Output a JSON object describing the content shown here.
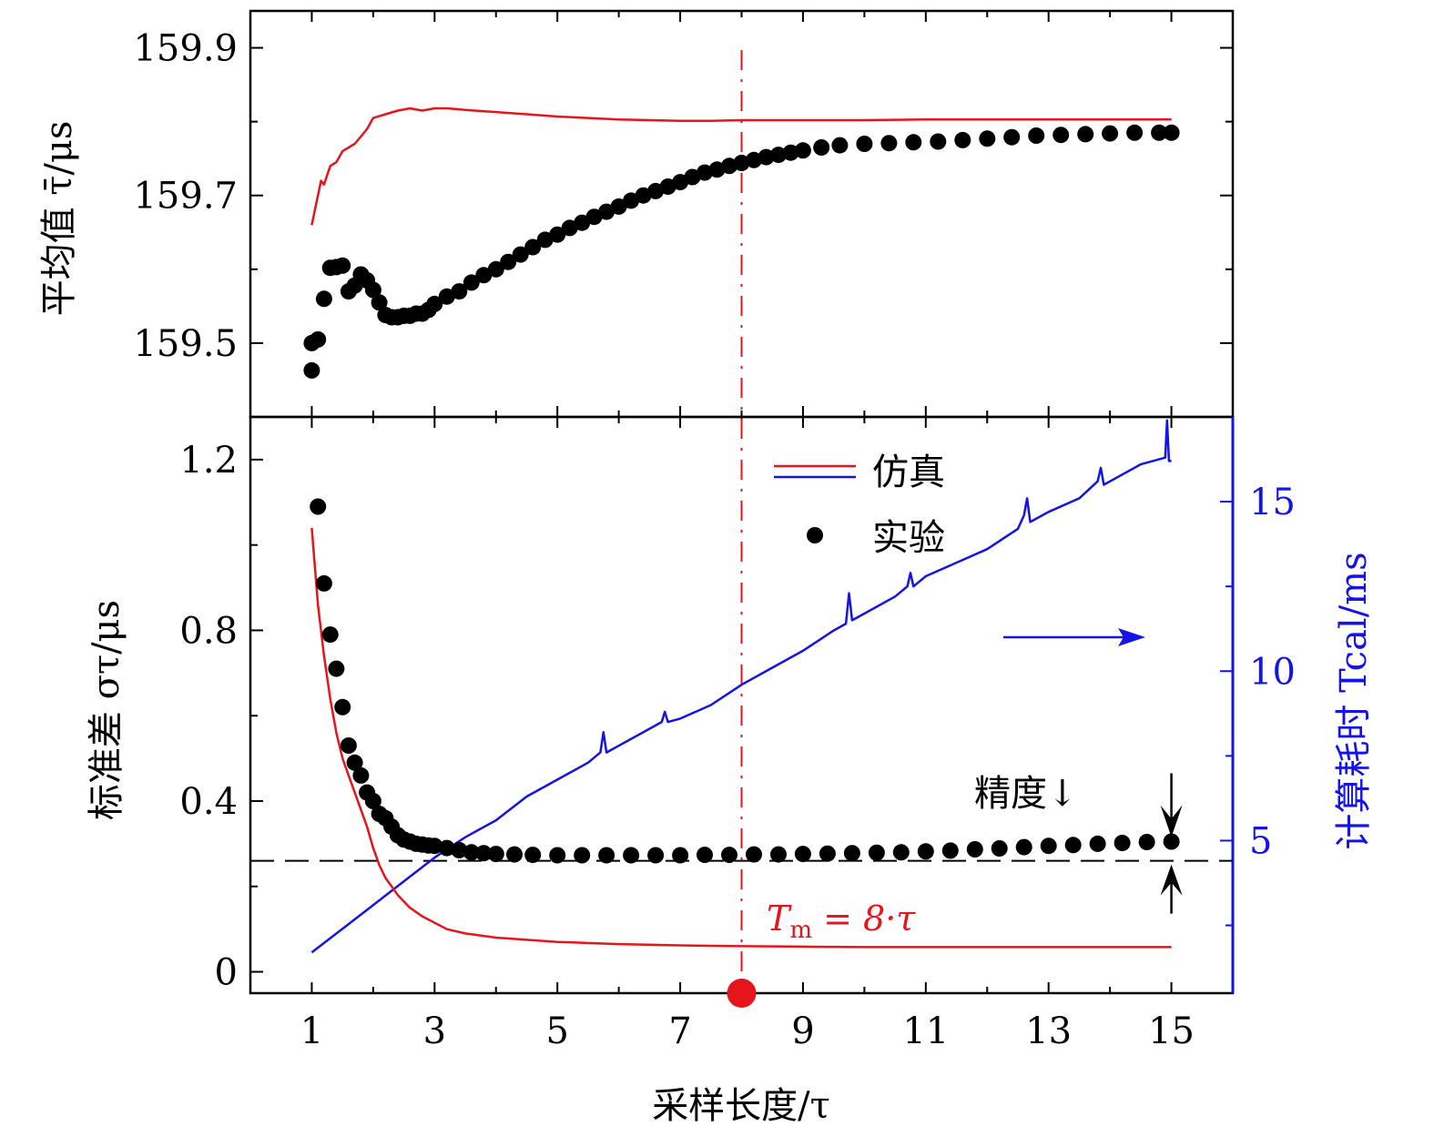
{
  "chart_data": [
    {
      "type": "scatter",
      "panel": "top",
      "ylabel": "平均值 τ̄/μs",
      "ylim": [
        159.4,
        159.95
      ],
      "yticks": [
        159.5,
        159.7,
        159.9
      ],
      "ytick_labels": [
        "159.5",
        "159.7",
        "159.9"
      ],
      "xlim": [
        0,
        16
      ],
      "series": [
        {
          "name": "仿真",
          "kind": "line",
          "color": "#e8141c",
          "x": [
            1.0,
            1.05,
            1.1,
            1.15,
            1.2,
            1.3,
            1.4,
            1.5,
            1.6,
            1.7,
            1.8,
            1.9,
            2.0,
            2.2,
            2.4,
            2.6,
            2.8,
            3.0,
            3.2,
            3.5,
            4.0,
            4.5,
            5.0,
            5.5,
            6.0,
            6.5,
            7.0,
            7.5,
            8.0,
            9.0,
            10.0,
            11.0,
            12.0,
            13.0,
            14.0,
            15.0
          ],
          "y": [
            159.66,
            159.68,
            159.7,
            159.72,
            159.715,
            159.74,
            159.745,
            159.76,
            159.765,
            159.77,
            159.78,
            159.79,
            159.805,
            159.81,
            159.815,
            159.818,
            159.815,
            159.818,
            159.818,
            159.816,
            159.813,
            159.81,
            159.807,
            159.805,
            159.803,
            159.802,
            159.801,
            159.801,
            159.802,
            159.802,
            159.802,
            159.803,
            159.803,
            159.803,
            159.803,
            159.803
          ]
        },
        {
          "name": "实验",
          "kind": "points",
          "color": "#000000",
          "x": [
            1.0,
            1.0,
            1.1,
            1.2,
            1.3,
            1.4,
            1.5,
            1.6,
            1.7,
            1.8,
            1.9,
            2.0,
            2.1,
            2.2,
            2.3,
            2.4,
            2.5,
            2.6,
            2.7,
            2.8,
            2.9,
            3.0,
            3.2,
            3.4,
            3.6,
            3.8,
            4.0,
            4.2,
            4.4,
            4.6,
            4.8,
            5.0,
            5.2,
            5.4,
            5.6,
            5.8,
            6.0,
            6.2,
            6.4,
            6.6,
            6.8,
            7.0,
            7.2,
            7.4,
            7.6,
            7.8,
            8.0,
            8.2,
            8.4,
            8.6,
            8.8,
            9.0,
            9.3,
            9.6,
            10.0,
            10.4,
            10.8,
            11.2,
            11.6,
            12.0,
            12.4,
            12.8,
            13.2,
            13.6,
            14.0,
            14.4,
            14.8,
            15.0
          ],
          "y": [
            159.463,
            159.5,
            159.505,
            159.56,
            159.602,
            159.603,
            159.605,
            159.57,
            159.578,
            159.593,
            159.585,
            159.572,
            159.555,
            159.538,
            159.535,
            159.535,
            159.537,
            159.537,
            159.54,
            159.54,
            159.545,
            159.553,
            159.563,
            159.57,
            159.582,
            159.592,
            159.6,
            159.61,
            159.62,
            159.63,
            159.64,
            159.647,
            159.656,
            159.663,
            159.671,
            159.678,
            159.685,
            159.693,
            159.7,
            159.706,
            159.712,
            159.718,
            159.725,
            159.731,
            159.735,
            159.74,
            159.744,
            159.748,
            159.752,
            159.755,
            159.758,
            159.761,
            159.765,
            159.768,
            159.77,
            159.771,
            159.772,
            159.773,
            159.775,
            159.777,
            159.779,
            159.781,
            159.782,
            159.783,
            159.784,
            159.785,
            159.785,
            159.785
          ]
        }
      ]
    },
    {
      "type": "scatter",
      "panel": "bottom",
      "xlabel": "采样长度/τ",
      "ylabel": "标准差 στ/μs",
      "y2label": "计算耗时 Tcal/ms",
      "xlim": [
        0,
        16
      ],
      "xticks": [
        1,
        3,
        5,
        7,
        9,
        11,
        13,
        15
      ],
      "xtick_labels": [
        "1",
        "3",
        "5",
        "7",
        "9",
        "11",
        "13",
        "15"
      ],
      "ylim": [
        -0.05,
        1.3
      ],
      "yticks": [
        0,
        0.4,
        0.8,
        1.2
      ],
      "ytick_labels": [
        "0",
        "0.4",
        "0.8",
        "1.2"
      ],
      "y2lim": [
        0.5,
        17.5
      ],
      "y2ticks": [
        5,
        10,
        15
      ],
      "y2tick_labels": [
        "5",
        "10",
        "15"
      ],
      "legend": {
        "placement": "top-center",
        "entries": [
          {
            "label": "仿真",
            "marker": "red-blue-lines"
          },
          {
            "label": "实验",
            "marker": "black-dot"
          }
        ]
      },
      "annotations": {
        "arrow_label": "精度↓",
        "tm_label_main": "T",
        "tm_label_sub": "m",
        "tm_label_rest": " = 8·τ",
        "tm_value": 8,
        "reference_line_y": 0.26,
        "right_axis_arrow": "→"
      },
      "series": [
        {
          "name": "仿真 στ",
          "axis": "left",
          "kind": "line",
          "color": "#e8141c",
          "x": [
            1.0,
            1.05,
            1.1,
            1.2,
            1.3,
            1.4,
            1.5,
            1.6,
            1.7,
            1.8,
            1.9,
            2.0,
            2.1,
            2.2,
            2.4,
            2.6,
            2.8,
            3.0,
            3.2,
            3.5,
            4.0,
            4.5,
            5.0,
            6.0,
            7.0,
            8.0,
            9.0,
            10.0,
            11.0,
            12.0,
            13.0,
            14.0,
            15.0
          ],
          "y": [
            1.04,
            0.95,
            0.86,
            0.74,
            0.64,
            0.56,
            0.5,
            0.46,
            0.42,
            0.38,
            0.34,
            0.29,
            0.25,
            0.22,
            0.18,
            0.15,
            0.13,
            0.115,
            0.1,
            0.09,
            0.08,
            0.075,
            0.07,
            0.065,
            0.062,
            0.06,
            0.059,
            0.058,
            0.058,
            0.058,
            0.058,
            0.058,
            0.058
          ]
        },
        {
          "name": "实验 στ",
          "axis": "left",
          "kind": "points",
          "color": "#000000",
          "x": [
            1.1,
            1.2,
            1.3,
            1.4,
            1.5,
            1.6,
            1.7,
            1.8,
            1.9,
            2.0,
            2.1,
            2.2,
            2.3,
            2.4,
            2.5,
            2.6,
            2.7,
            2.8,
            2.9,
            3.0,
            3.2,
            3.4,
            3.6,
            3.8,
            4.0,
            4.3,
            4.6,
            5.0,
            5.4,
            5.8,
            6.2,
            6.6,
            7.0,
            7.4,
            7.8,
            8.2,
            8.6,
            9.0,
            9.4,
            9.8,
            10.2,
            10.6,
            11.0,
            11.4,
            11.8,
            12.2,
            12.6,
            13.0,
            13.4,
            13.8,
            14.2,
            14.6,
            15.0
          ],
          "y": [
            1.09,
            0.91,
            0.79,
            0.71,
            0.62,
            0.53,
            0.49,
            0.46,
            0.42,
            0.4,
            0.37,
            0.36,
            0.34,
            0.32,
            0.31,
            0.305,
            0.3,
            0.298,
            0.296,
            0.295,
            0.29,
            0.285,
            0.28,
            0.278,
            0.276,
            0.275,
            0.274,
            0.273,
            0.273,
            0.273,
            0.273,
            0.273,
            0.273,
            0.274,
            0.274,
            0.275,
            0.275,
            0.276,
            0.277,
            0.278,
            0.279,
            0.28,
            0.282,
            0.284,
            0.287,
            0.289,
            0.292,
            0.295,
            0.297,
            0.3,
            0.302,
            0.304,
            0.305
          ]
        },
        {
          "name": "仿真 Tcal",
          "axis": "right",
          "kind": "line",
          "color": "#1414e8",
          "x": [
            1.0,
            1.5,
            2.0,
            2.5,
            3.0,
            3.5,
            4.0,
            4.5,
            5.0,
            5.5,
            5.7,
            5.75,
            5.8,
            6.0,
            6.5,
            6.7,
            6.75,
            6.8,
            7.0,
            7.5,
            8.0,
            8.5,
            9.0,
            9.5,
            9.7,
            9.75,
            9.8,
            10.0,
            10.5,
            10.7,
            10.75,
            10.8,
            11.0,
            11.5,
            12.0,
            12.5,
            12.6,
            12.65,
            12.7,
            13.0,
            13.5,
            13.8,
            13.85,
            13.9,
            14.2,
            14.5,
            14.9,
            14.93,
            14.96,
            15.0
          ],
          "y": [
            1.7,
            2.4,
            3.1,
            3.8,
            4.5,
            5.1,
            5.6,
            6.3,
            6.8,
            7.3,
            7.6,
            8.2,
            7.6,
            7.8,
            8.3,
            8.5,
            8.8,
            8.5,
            8.6,
            9.0,
            9.6,
            10.1,
            10.6,
            11.2,
            11.4,
            12.3,
            11.5,
            11.7,
            12.2,
            12.5,
            12.9,
            12.5,
            12.8,
            13.2,
            13.6,
            14.2,
            14.6,
            15.1,
            14.4,
            14.7,
            15.1,
            15.6,
            16.0,
            15.5,
            15.8,
            16.1,
            16.3,
            17.4,
            16.2,
            16.2
          ]
        }
      ]
    }
  ]
}
